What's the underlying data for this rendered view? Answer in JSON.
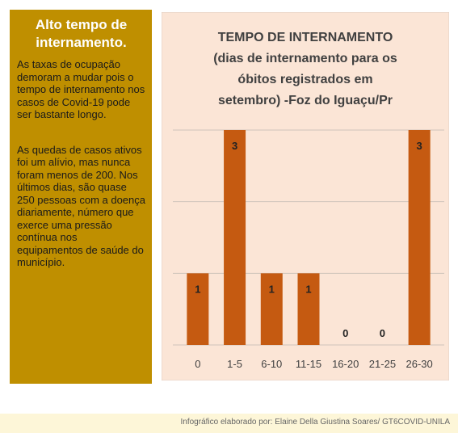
{
  "panel": {
    "title": "Alto tempo de internamento.",
    "paragraphs": [
      "As taxas de ocupação demoram a mudar pois o tempo de internamento nos casos de Covid-19 pode ser bastante longo.",
      "As quedas de casos ativos foi um alívio, mas nunca foram menos de 200. Nos últimos dias, são quase 250 pessoas com a doença diariamente, número que exerce uma pressão contínua nos equipamentos de saúde do município."
    ]
  },
  "chart_data": {
    "type": "bar",
    "title": [
      "TEMPO DE INTERNAMENTO",
      "(dias de internamento para os",
      "óbitos registrados em",
      "setembro) -Foz do Iguaçu/Pr"
    ],
    "categories": [
      "0",
      "1-5",
      "6-10",
      "11-15",
      "16-20",
      "21-25",
      "26-30"
    ],
    "values": [
      1,
      3,
      1,
      1,
      0,
      0,
      3
    ],
    "color": "#c55a11",
    "ylim": [
      0,
      3
    ],
    "yticks": [
      0,
      1,
      2,
      3
    ],
    "grid": true
  },
  "footer": "Infográfico elaborado por: Elaine Della Giustina Soares/ GT6COVID-UNILA"
}
